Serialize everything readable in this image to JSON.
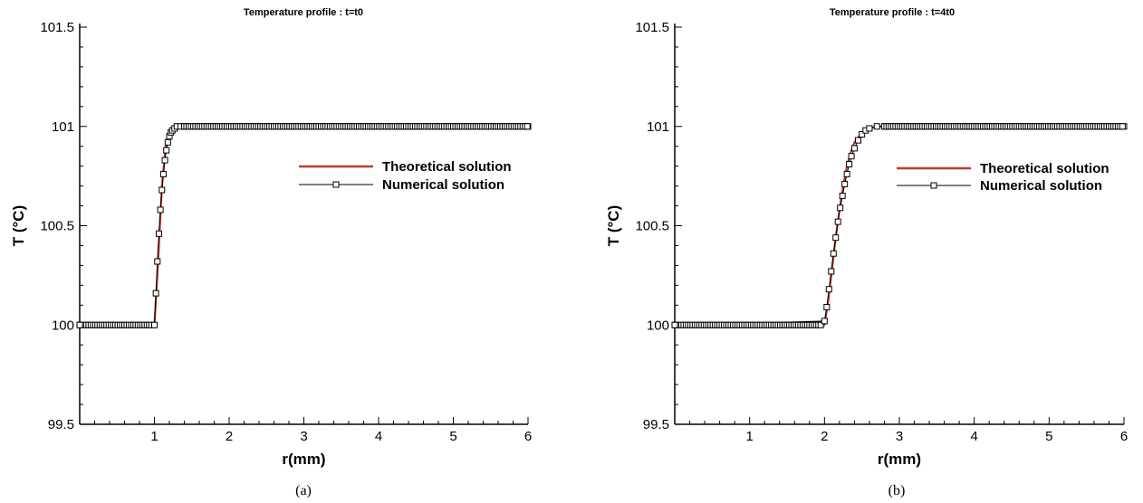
{
  "chart_data": [
    {
      "type": "line",
      "title": "Temperature profile : t=t0",
      "xlabel": "r(mm)",
      "ylabel": "T (°C)",
      "caption": "(a)",
      "xlim": [
        0,
        6
      ],
      "ylim": [
        99.5,
        101.5
      ],
      "xticks": [
        1,
        2,
        3,
        4,
        5,
        6
      ],
      "xtick_labels": [
        "1",
        "2",
        "3",
        "4",
        "5",
        "6"
      ],
      "yticks": [
        99.5,
        100,
        100.5,
        101,
        101.5
      ],
      "ytick_labels": [
        "99.5",
        "100",
        "100.5",
        "101",
        "101.5"
      ],
      "grid": false,
      "legend_position": "right-middle",
      "series": [
        {
          "name": "Theoretical solution",
          "color": "#c0392b",
          "marker": "none",
          "x": [
            0,
            1.0,
            1.05,
            1.1,
            1.15,
            1.2,
            1.25,
            1.3,
            1.35,
            1.4,
            6
          ],
          "y": [
            100,
            100,
            100.32,
            100.7,
            100.9,
            100.97,
            100.99,
            101,
            101,
            101,
            101
          ]
        },
        {
          "name": "Numerical solution",
          "color": "#000000",
          "marker": "square",
          "x": [
            0,
            1.0,
            1.02,
            1.04,
            1.06,
            1.08,
            1.1,
            1.12,
            1.14,
            1.16,
            1.18,
            1.2,
            1.22,
            1.24,
            1.27,
            1.3,
            1.35,
            1.4,
            6
          ],
          "y": [
            100,
            100,
            100.16,
            100.32,
            100.46,
            100.58,
            100.68,
            100.76,
            100.83,
            100.88,
            100.92,
            100.95,
            100.97,
            100.98,
            100.99,
            101,
            101,
            101,
            101
          ]
        }
      ]
    },
    {
      "type": "line",
      "title": "Temperature profile : t=4t0",
      "xlabel": "r(mm)",
      "ylabel": "T (°C)",
      "caption": "(b)",
      "xlim": [
        0,
        6
      ],
      "ylim": [
        99.5,
        101.5
      ],
      "xticks": [
        1,
        2,
        3,
        4,
        5,
        6
      ],
      "xtick_labels": [
        "1",
        "2",
        "3",
        "4",
        "5",
        "6"
      ],
      "yticks": [
        99.5,
        100,
        100.5,
        101,
        101.5
      ],
      "ytick_labels": [
        "99.5",
        "100",
        "100.5",
        "101",
        "101.5"
      ],
      "grid": false,
      "legend_position": "right-middle",
      "series": [
        {
          "name": "Theoretical solution",
          "color": "#c0392b",
          "marker": "none",
          "x": [
            0,
            2.0,
            2.05,
            2.1,
            2.15,
            2.2,
            2.25,
            2.3,
            2.35,
            2.4,
            2.5,
            2.6,
            2.7,
            2.8,
            6
          ],
          "y": [
            100,
            100,
            100.12,
            100.28,
            100.44,
            100.58,
            100.7,
            100.8,
            100.87,
            100.92,
            100.97,
            100.99,
            101,
            101,
            101
          ]
        },
        {
          "name": "Numerical solution",
          "color": "#000000",
          "marker": "square",
          "x": [
            0,
            2.0,
            2.03,
            2.06,
            2.09,
            2.12,
            2.15,
            2.18,
            2.21,
            2.24,
            2.27,
            2.3,
            2.33,
            2.36,
            2.4,
            2.45,
            2.5,
            2.55,
            2.6,
            2.7,
            2.8,
            6
          ],
          "y": [
            100,
            100.02,
            100.09,
            100.18,
            100.27,
            100.36,
            100.44,
            100.52,
            100.59,
            100.65,
            100.71,
            100.76,
            100.81,
            100.85,
            100.89,
            100.93,
            100.96,
            100.98,
            100.99,
            101,
            101,
            101
          ]
        }
      ]
    }
  ]
}
